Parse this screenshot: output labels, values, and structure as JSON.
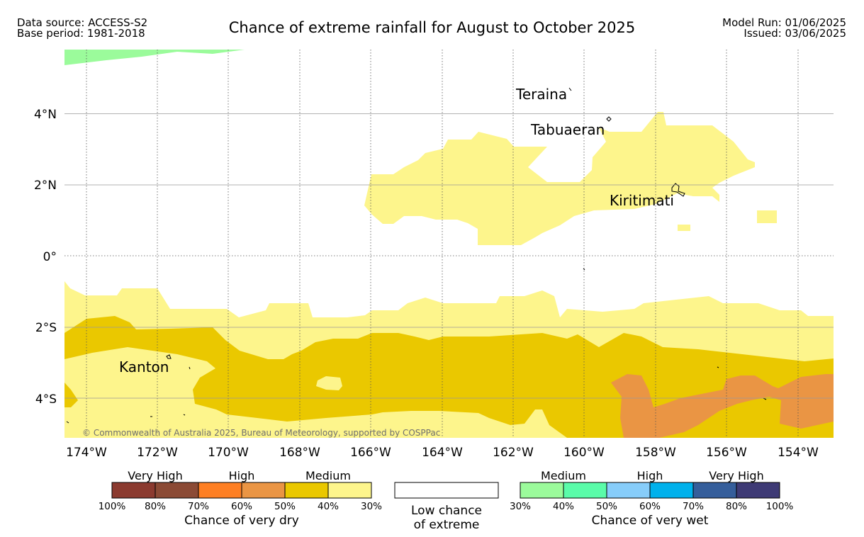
{
  "header": {
    "source_line": "Data source: ACCESS-S2",
    "base_line": "Base period: 1981-2018",
    "title": "Chance of extreme rainfall for August to October 2025",
    "model_run": "Model Run: 01/06/2025",
    "issued": "Issued: 03/06/2025"
  },
  "map": {
    "lon_ticks": [
      "174°W",
      "172°W",
      "170°W",
      "168°W",
      "166°W",
      "164°W",
      "162°W",
      "160°W",
      "158°W",
      "156°W",
      "154°W"
    ],
    "lat_ticks": [
      "4°N",
      "2°N",
      "0°",
      "2°S",
      "4°S"
    ],
    "places": {
      "teraina": "Teraina",
      "tabuaeran": "Tabuaeran",
      "kiritimati": "Kiritimati",
      "kanton": "Kanton"
    },
    "copyright": "© Commonwealth of Australia 2025, Bureau of Meteorology, supported by COSPPac"
  },
  "legend": {
    "dry": {
      "headers": [
        "Very High",
        "High",
        "Medium"
      ],
      "colors": [
        "#8b3a2f",
        "#8b4a35",
        "#fe7f23",
        "#ea9544",
        "#eac800",
        "#fdf58c"
      ],
      "ticks": [
        "100%",
        "80%",
        "70%",
        "60%",
        "50%",
        "40%",
        "30%"
      ],
      "caption": "Chance of very dry"
    },
    "low": {
      "caption_line1": "Low chance",
      "caption_line2": "of extreme"
    },
    "wet": {
      "headers": [
        "Medium",
        "High",
        "Very High"
      ],
      "colors": [
        "#9bfb9b",
        "#5afca9",
        "#87cdfa",
        "#00b1ec",
        "#355e9b",
        "#3e3a75"
      ],
      "ticks": [
        "30%",
        "40%",
        "50%",
        "60%",
        "70%",
        "80%",
        "100%"
      ],
      "caption": "Chance of very wet"
    }
  },
  "colors": {
    "very_dry_medium_light": "#fdf58c",
    "very_dry_medium": "#eac800",
    "very_dry_high": "#ea9544",
    "very_wet_medium": "#9bfb9b"
  }
}
